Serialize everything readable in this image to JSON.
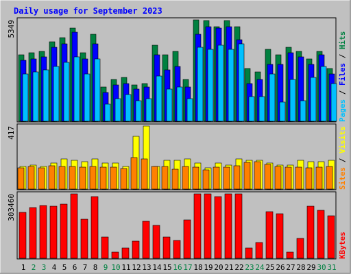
{
  "colors": {
    "background": "#c0c0c0",
    "title": "#0000ff",
    "hits": "#008040",
    "files": "#0000ff",
    "pages": "#00c0ff",
    "visits": "#ffff00",
    "sites": "#ff8000",
    "kbytes": "#ff0000",
    "weekend_label": "#008040"
  },
  "chart_data": {
    "type": "bar",
    "title": "Daily usage for September 2023",
    "categories": [
      "1",
      "2",
      "3",
      "4",
      "5",
      "6",
      "7",
      "8",
      "9",
      "10",
      "11",
      "12",
      "13",
      "14",
      "15",
      "16",
      "17",
      "18",
      "19",
      "20",
      "21",
      "22",
      "23",
      "24",
      "25",
      "26",
      "27",
      "28",
      "29",
      "30",
      "31"
    ],
    "weekend_days": [
      "2",
      "3",
      "9",
      "10",
      "16",
      "17",
      "23",
      "24",
      "30",
      "31"
    ],
    "panels": [
      {
        "name": "top",
        "max_label": "5349",
        "ymax": 5349,
        "legend": [
          "Pages",
          "Files",
          "Hits"
        ],
        "series": [
          {
            "name": "Hits",
            "values": [
              3500,
              3600,
              3700,
              4200,
              4400,
              4900,
              3600,
              4600,
              1800,
              2200,
              2300,
              1900,
              2000,
              4000,
              3500,
              3700,
              2200,
              5340,
              5300,
              5000,
              5300,
              5000,
              2800,
              2600,
              3800,
              3500,
              3900,
              3700,
              3300,
              3700,
              2800
            ]
          },
          {
            "name": "Files",
            "values": [
              3200,
              3300,
              3400,
              3900,
              4100,
              4700,
              3300,
              4100,
              1500,
              1900,
              2000,
              1700,
              1800,
              3500,
              2700,
              2900,
              1800,
              4600,
              5000,
              4900,
              5000,
              4300,
              2000,
              2200,
              3000,
              3000,
              3600,
              3400,
              3000,
              3500,
              2500
            ]
          },
          {
            "name": "Pages",
            "values": [
              2500,
              2600,
              2700,
              2900,
              3100,
              3400,
              2500,
              3300,
              900,
              1200,
              1400,
              1100,
              1200,
              2400,
              1700,
              1800,
              1200,
              3900,
              3800,
              4000,
              3800,
              4100,
              1300,
              1300,
              2500,
              1000,
              2200,
              1100,
              2300,
              2900,
              2000
            ]
          }
        ]
      },
      {
        "name": "middle",
        "max_label": "417",
        "ymax": 417,
        "legend": [
          "Sites",
          "Visits"
        ],
        "series": [
          {
            "name": "Visits",
            "values": [
              150,
              160,
              150,
              170,
              200,
              190,
              180,
              200,
              170,
              170,
              150,
              350,
              417,
              150,
              190,
              190,
              200,
              170,
              140,
              170,
              160,
              200,
              190,
              190,
              170,
              160,
              160,
              190,
              180,
              180,
              190
            ]
          },
          {
            "name": "Sites",
            "values": [
              140,
              150,
              140,
              155,
              150,
              150,
              145,
              150,
              145,
              145,
              135,
              210,
              200,
              150,
              150,
              130,
              150,
              145,
              125,
              145,
              145,
              155,
              175,
              180,
              165,
              150,
              145,
              145,
              140,
              145,
              150
            ]
          }
        ]
      },
      {
        "name": "bottom",
        "max_label": "303460",
        "ymax": 303460,
        "legend": [
          "KBytes"
        ],
        "series": [
          {
            "name": "KBytes",
            "values": [
              215000,
              240000,
              250000,
              245000,
              255000,
              303460,
              185000,
              290000,
              100000,
              30000,
              50000,
              80000,
              175000,
              155000,
              100000,
              85000,
              180000,
              303460,
              303000,
              290000,
              303460,
              303460,
              50000,
              75000,
              220000,
              210000,
              30000,
              95000,
              245000,
              225000,
              200000
            ]
          }
        ]
      }
    ]
  }
}
